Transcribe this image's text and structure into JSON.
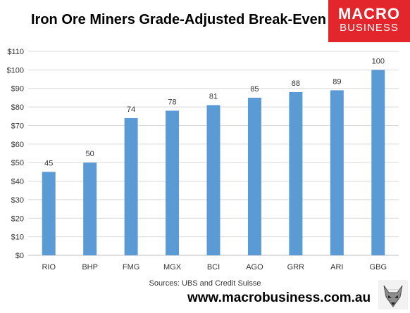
{
  "title": "Iron Ore Miners Grade-Adjusted Break-Even",
  "logo": {
    "line1": "MACRO",
    "line2": "BUSINESS"
  },
  "source_note": "Sources: UBS and Credit Suisse",
  "website": "www.macrobusiness.com.au",
  "colors": {
    "bar": "#5b9bd5",
    "grid": "#d9d9d9",
    "logo_bg": "#e3262b"
  },
  "chart_data": {
    "type": "bar",
    "title": "Iron Ore Miners Grade-Adjusted Break-Even",
    "categories": [
      "RIO",
      "BHP",
      "FMG",
      "MGX",
      "BCI",
      "AGO",
      "GRR",
      "ARI",
      "GBG"
    ],
    "values": [
      45,
      50,
      74,
      78,
      81,
      85,
      88,
      89,
      100
    ],
    "ylim": [
      0,
      110
    ],
    "yticks": [
      0,
      10,
      20,
      30,
      40,
      50,
      60,
      70,
      80,
      90,
      100,
      110
    ],
    "ytick_prefix": "$",
    "xlabel": "",
    "ylabel": "",
    "grid": true,
    "data_labels": true
  }
}
